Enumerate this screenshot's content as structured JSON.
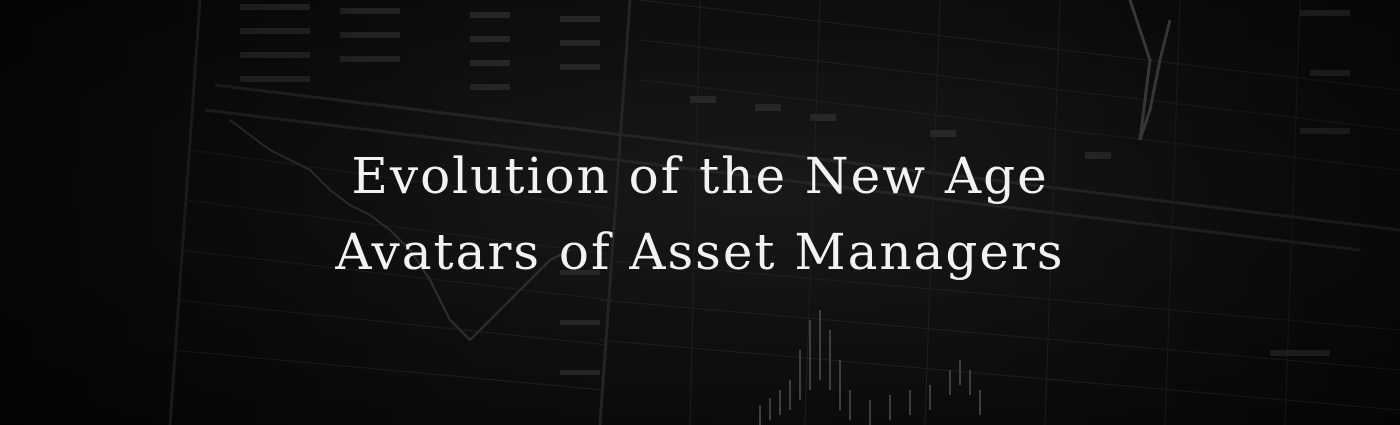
{
  "hero": {
    "title_line_1": "Evolution of the New Age",
    "title_line_2": "Avatars of Asset Managers"
  },
  "background": {
    "description_icon": "stock-chart-screen-icon",
    "tint": "#0b0b0b",
    "text_color": "#f2f2f2"
  }
}
